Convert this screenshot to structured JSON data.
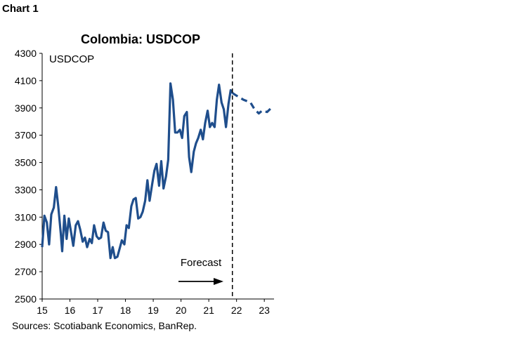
{
  "header": {
    "chart_label": "Chart 1"
  },
  "footer": {
    "source": "Sources: Scotiabank Economics, BanRep."
  },
  "chart_data": {
    "type": "line",
    "title": "Colombia: USDCOP",
    "series_label": "USDCOP",
    "annotation": "Forecast",
    "xlabel": "",
    "ylabel": "",
    "xlim": [
      2015,
      2023.35
    ],
    "ylim": [
      2500,
      4300
    ],
    "x_ticks": [
      2015,
      2016,
      2017,
      2018,
      2019,
      2020,
      2021,
      2022,
      2023
    ],
    "x_tick_labels": [
      "15",
      "16",
      "17",
      "18",
      "19",
      "20",
      "21",
      "22",
      "23"
    ],
    "y_ticks": [
      2500,
      2700,
      2900,
      3100,
      3300,
      3500,
      3700,
      3900,
      4100,
      4300
    ],
    "y_tick_labels": [
      "2500",
      "2700",
      "2900",
      "3100",
      "3300",
      "3500",
      "3700",
      "3900",
      "4100",
      "4300"
    ],
    "forecast_start": 2021.85,
    "grid": false,
    "colors": {
      "line": "#1f4e8c",
      "text": "#000000",
      "axis": "#000000"
    },
    "series": [
      {
        "style": "solid",
        "points": [
          [
            2015.0,
            2880
          ],
          [
            2015.08,
            3110
          ],
          [
            2015.17,
            3060
          ],
          [
            2015.25,
            2900
          ],
          [
            2015.33,
            3120
          ],
          [
            2015.42,
            3170
          ],
          [
            2015.5,
            3320
          ],
          [
            2015.58,
            3180
          ],
          [
            2015.67,
            2980
          ],
          [
            2015.72,
            2850
          ],
          [
            2015.8,
            3110
          ],
          [
            2015.88,
            2940
          ],
          [
            2015.96,
            3090
          ],
          [
            2016.04,
            2990
          ],
          [
            2016.12,
            2890
          ],
          [
            2016.21,
            3040
          ],
          [
            2016.29,
            3070
          ],
          [
            2016.37,
            3010
          ],
          [
            2016.46,
            2920
          ],
          [
            2016.54,
            2950
          ],
          [
            2016.62,
            2880
          ],
          [
            2016.71,
            2940
          ],
          [
            2016.79,
            2910
          ],
          [
            2016.87,
            3040
          ],
          [
            2016.96,
            2960
          ],
          [
            2017.04,
            2940
          ],
          [
            2017.12,
            2950
          ],
          [
            2017.21,
            3060
          ],
          [
            2017.29,
            3000
          ],
          [
            2017.37,
            2990
          ],
          [
            2017.46,
            2800
          ],
          [
            2017.54,
            2880
          ],
          [
            2017.62,
            2800
          ],
          [
            2017.71,
            2810
          ],
          [
            2017.79,
            2870
          ],
          [
            2017.87,
            2930
          ],
          [
            2017.96,
            2900
          ],
          [
            2018.04,
            3040
          ],
          [
            2018.12,
            3020
          ],
          [
            2018.21,
            3180
          ],
          [
            2018.29,
            3230
          ],
          [
            2018.37,
            3240
          ],
          [
            2018.46,
            3090
          ],
          [
            2018.54,
            3100
          ],
          [
            2018.62,
            3140
          ],
          [
            2018.71,
            3220
          ],
          [
            2018.79,
            3370
          ],
          [
            2018.87,
            3220
          ],
          [
            2018.96,
            3340
          ],
          [
            2019.04,
            3440
          ],
          [
            2019.12,
            3490
          ],
          [
            2019.21,
            3330
          ],
          [
            2019.29,
            3510
          ],
          [
            2019.37,
            3310
          ],
          [
            2019.46,
            3400
          ],
          [
            2019.54,
            3520
          ],
          [
            2019.62,
            4080
          ],
          [
            2019.71,
            3960
          ],
          [
            2019.79,
            3720
          ],
          [
            2019.87,
            3720
          ],
          [
            2019.96,
            3740
          ],
          [
            2020.04,
            3680
          ],
          [
            2020.12,
            3840
          ],
          [
            2020.21,
            3870
          ],
          [
            2020.29,
            3540
          ],
          [
            2020.37,
            3430
          ],
          [
            2020.46,
            3580
          ],
          [
            2020.54,
            3640
          ],
          [
            2020.62,
            3680
          ],
          [
            2020.71,
            3740
          ],
          [
            2020.79,
            3670
          ],
          [
            2020.87,
            3790
          ],
          [
            2020.96,
            3880
          ],
          [
            2021.04,
            3760
          ],
          [
            2021.12,
            3790
          ],
          [
            2021.21,
            3760
          ],
          [
            2021.29,
            3960
          ],
          [
            2021.37,
            4070
          ],
          [
            2021.46,
            3940
          ],
          [
            2021.54,
            3890
          ],
          [
            2021.62,
            3760
          ],
          [
            2021.71,
            3930
          ],
          [
            2021.79,
            4030
          ],
          [
            2021.85,
            4010
          ]
        ]
      },
      {
        "style": "dashed",
        "points": [
          [
            2021.85,
            4010
          ],
          [
            2022.0,
            3990
          ],
          [
            2022.25,
            3960
          ],
          [
            2022.5,
            3940
          ],
          [
            2022.65,
            3890
          ],
          [
            2022.8,
            3860
          ],
          [
            2022.92,
            3880
          ],
          [
            2023.1,
            3870
          ],
          [
            2023.3,
            3910
          ]
        ]
      }
    ]
  }
}
